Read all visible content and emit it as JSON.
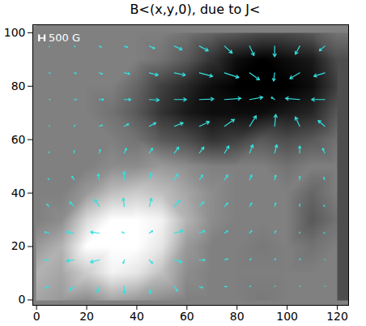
{
  "chart_data": {
    "type": "vector",
    "title": "B<(x,y,0), due to J<",
    "xlim": [
      -1.5,
      124.5
    ],
    "ylim": [
      -2,
      103
    ],
    "xticks": [
      0,
      20,
      40,
      60,
      80,
      100,
      120
    ],
    "yticks": [
      0,
      20,
      40,
      60,
      80,
      100
    ],
    "color": "#33e0e0",
    "reference": {
      "value": 500,
      "label": "500 G"
    },
    "cells": {
      "zlim": [
        -1000,
        1000
      ],
      "x": [
        0,
        10,
        20,
        30,
        40,
        50,
        60,
        70,
        80,
        90,
        100,
        110,
        120
      ],
      "y": [
        0,
        10,
        20,
        30,
        40,
        50,
        60,
        70,
        80,
        90,
        100
      ],
      "z": [
        [
          300,
          200,
          100,
          300,
          200,
          100,
          0,
          0,
          0,
          -50,
          0,
          0,
          0
        ],
        [
          400,
          300,
          600,
          900,
          800,
          500,
          100,
          0,
          0,
          0,
          0,
          0,
          0
        ],
        [
          200,
          400,
          1000,
          1000,
          1000,
          800,
          200,
          0,
          0,
          -50,
          0,
          -100,
          0
        ],
        [
          0,
          100,
          700,
          1000,
          1000,
          900,
          400,
          100,
          0,
          0,
          0,
          -300,
          -100
        ],
        [
          0,
          0,
          200,
          500,
          600,
          500,
          300,
          100,
          0,
          0,
          0,
          -200,
          0
        ],
        [
          0,
          0,
          0,
          100,
          100,
          200,
          100,
          0,
          0,
          0,
          -100,
          0,
          0
        ],
        [
          0,
          0,
          0,
          0,
          -100,
          -300,
          -400,
          -600,
          -500,
          -300,
          -400,
          -300,
          -100
        ],
        [
          0,
          0,
          0,
          -100,
          -300,
          -600,
          -800,
          -900,
          -900,
          -900,
          -800,
          -700,
          -300
        ],
        [
          0,
          0,
          0,
          0,
          -200,
          -500,
          -700,
          -900,
          -1000,
          -1000,
          -1000,
          -900,
          -500
        ],
        [
          0,
          0,
          0,
          0,
          0,
          -100,
          -300,
          -600,
          -900,
          -1000,
          -900,
          -800,
          -400
        ],
        [
          0,
          0,
          0,
          0,
          0,
          0,
          -100,
          -200,
          -300,
          -400,
          -400,
          -300,
          -100
        ]
      ]
    },
    "vectors": {
      "x": [
        5,
        15,
        25,
        35,
        45,
        55,
        65,
        75,
        85,
        95,
        105,
        115
      ],
      "y": [
        5,
        15,
        25,
        35,
        45,
        55,
        65,
        75,
        85,
        95
      ],
      "bx": [
        [
          -300,
          -400,
          -200,
          0,
          100,
          300,
          300,
          200,
          100,
          50,
          50,
          50
        ],
        [
          -400,
          -700,
          -800,
          -100,
          300,
          700,
          500,
          300,
          150,
          100,
          50,
          0
        ],
        [
          -400,
          -700,
          -800,
          -200,
          300,
          800,
          500,
          300,
          200,
          100,
          0,
          -100
        ],
        [
          -200,
          -400,
          -400,
          -100,
          200,
          500,
          400,
          300,
          200,
          100,
          0,
          -100
        ],
        [
          -100,
          -200,
          -100,
          0,
          200,
          300,
          300,
          300,
          200,
          100,
          0,
          -100
        ],
        [
          0,
          0,
          100,
          200,
          300,
          400,
          400,
          400,
          300,
          200,
          0,
          -200
        ],
        [
          50,
          100,
          300,
          400,
          600,
          800,
          900,
          900,
          600,
          100,
          -400,
          -600
        ],
        [
          100,
          200,
          400,
          600,
          900,
          1100,
          1300,
          1500,
          1200,
          -300,
          -1300,
          -1200
        ],
        [
          100,
          200,
          300,
          500,
          800,
          1000,
          1200,
          1300,
          900,
          -100,
          -900,
          -1000
        ],
        [
          50,
          100,
          200,
          300,
          500,
          700,
          800,
          700,
          400,
          0,
          -400,
          -500
        ]
      ],
      "by": [
        [
          -100,
          -300,
          -500,
          -600,
          -600,
          -400,
          -100,
          0,
          50,
          50,
          50,
          50
        ],
        [
          0,
          -100,
          -200,
          -300,
          -300,
          -200,
          0,
          100,
          100,
          100,
          100,
          50
        ],
        [
          100,
          100,
          100,
          100,
          200,
          200,
          200,
          200,
          200,
          200,
          100,
          50
        ],
        [
          200,
          400,
          600,
          700,
          700,
          500,
          400,
          300,
          300,
          300,
          200,
          100
        ],
        [
          100,
          300,
          500,
          700,
          600,
          500,
          400,
          400,
          400,
          400,
          300,
          200
        ],
        [
          100,
          200,
          300,
          400,
          400,
          500,
          500,
          600,
          700,
          700,
          600,
          400
        ],
        [
          50,
          100,
          100,
          200,
          300,
          300,
          400,
          600,
          900,
          1000,
          800,
          500
        ],
        [
          0,
          0,
          0,
          0,
          -50,
          0,
          50,
          100,
          200,
          200,
          100,
          0
        ],
        [
          -50,
          -50,
          -100,
          -100,
          -200,
          -200,
          -300,
          -400,
          -600,
          -700,
          -500,
          -300
        ],
        [
          -50,
          -50,
          -100,
          -100,
          -200,
          -300,
          -400,
          -600,
          -800,
          -900,
          -700,
          -400
        ]
      ]
    }
  }
}
